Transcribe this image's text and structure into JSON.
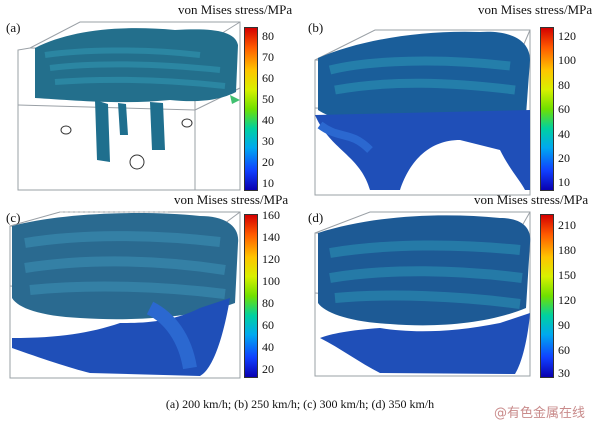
{
  "panels": [
    {
      "label": "(a)",
      "colorbar_title": "von Mises stress/MPa",
      "ticks": [
        "80",
        "70",
        "60",
        "50",
        "40",
        "30",
        "20",
        "10"
      ]
    },
    {
      "label": "(b)",
      "colorbar_title": "von Mises stress/MPa",
      "ticks": [
        "120",
        "100",
        "80",
        "60",
        "40",
        "20",
        "10"
      ]
    },
    {
      "label": "(c)",
      "colorbar_title": "von Mises stress/MPa",
      "ticks": [
        "160",
        "140",
        "120",
        "100",
        "80",
        "60",
        "40",
        "20"
      ]
    },
    {
      "label": "(d)",
      "colorbar_title": "von Mises stress/MPa",
      "ticks": [
        "210",
        "180",
        "150",
        "120",
        "90",
        "60",
        "30"
      ]
    }
  ],
  "caption": "(a)  200  km/h; (b) 250 km/h; (c) 300 km/h; (d) 350 km/h",
  "watermark": "@有色金属在线",
  "colors": {
    "lattice": "#1f6f8e",
    "lattice_dark": "#10506e",
    "blue_fill": "#1f4fb8",
    "box_line": "#9aa0a6"
  }
}
